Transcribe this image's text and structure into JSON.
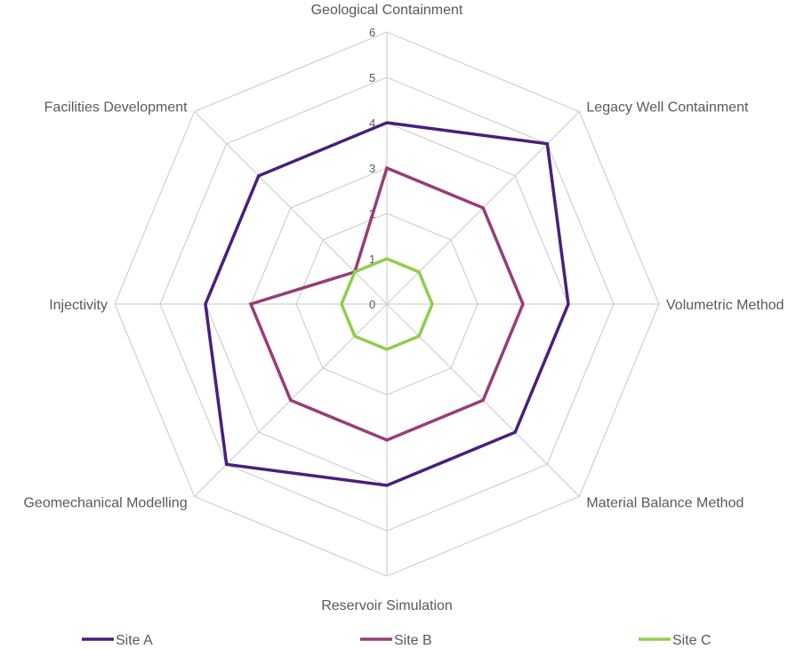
{
  "chart_data": {
    "type": "radar",
    "categories": [
      "Geological Containment",
      "Legacy Well Containment",
      "Volumetric Method",
      "Material Balance Method",
      "Reservoir Simulation",
      "Geomechanical Modelling",
      "Injectivity",
      "Facilities Development"
    ],
    "rlim": [
      0,
      6
    ],
    "ticks": [
      "0",
      "1",
      "2",
      "3",
      "4",
      "5",
      "6"
    ],
    "grid": true,
    "legend_position": "bottom",
    "series": [
      {
        "name": "Site A",
        "color": "#4b1f7a",
        "values": [
          4,
          5,
          4,
          4,
          4,
          5,
          4,
          4
        ]
      },
      {
        "name": "Site B",
        "color": "#963d7a",
        "values": [
          3,
          3,
          3,
          3,
          3,
          3,
          3,
          1
        ]
      },
      {
        "name": "Site C",
        "color": "#8fce4a",
        "values": [
          1,
          1,
          1,
          1,
          1,
          1,
          1,
          1
        ]
      }
    ]
  }
}
